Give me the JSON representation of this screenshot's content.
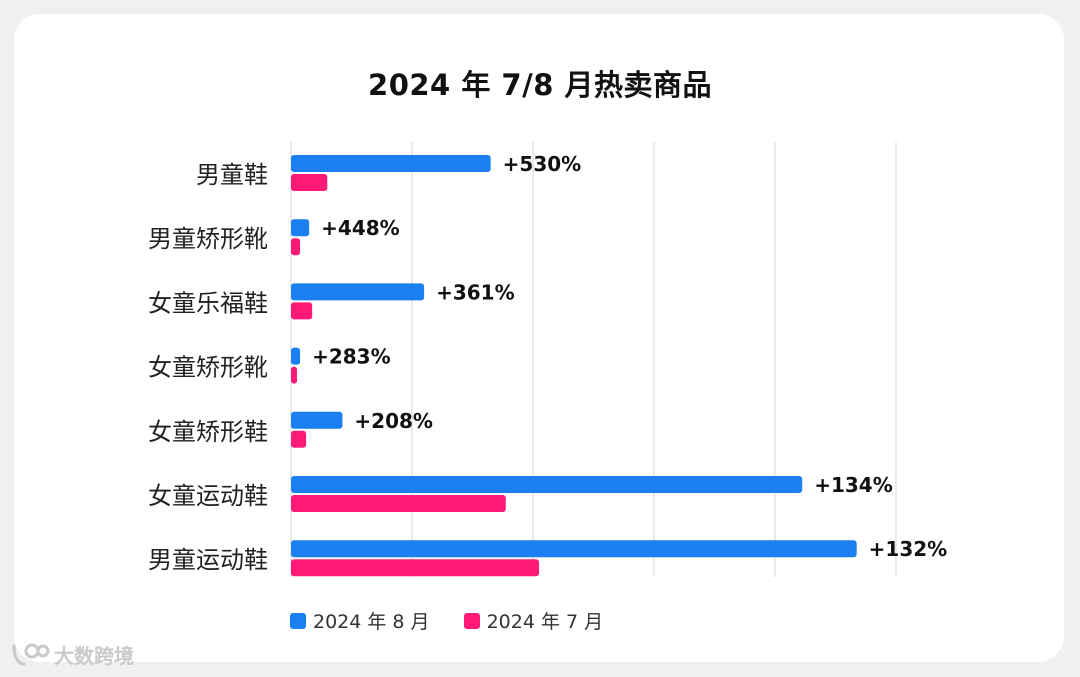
{
  "chart_data": {
    "type": "bar",
    "orientation": "horizontal",
    "title": "2024 年 7/8 月热卖商品",
    "categories": [
      "男童鞋",
      "男童矫形靴",
      "女童乐福鞋",
      "女童矫形靴",
      "女童矫形鞋",
      "女童运动鞋",
      "男童运动鞋"
    ],
    "series": [
      {
        "name": "2024 年 8 月",
        "color": "#1a7ff0",
        "values": [
          33,
          3,
          22,
          1.5,
          8.5,
          84.5,
          93.5
        ]
      },
      {
        "name": "2024 年 7 月",
        "color": "#ff1a78",
        "values": [
          6,
          1.5,
          3.5,
          1,
          2.5,
          35.5,
          41
        ]
      }
    ],
    "growth_labels": [
      "+530%",
      "+448%",
      "+361%",
      "+283%",
      "+208%",
      "+134%",
      "+132%"
    ],
    "xlim": [
      0,
      100
    ],
    "grid": true,
    "legend_position": "bottom-left"
  },
  "watermark": {
    "text": "大数跨境",
    "icon": "logo-icon"
  }
}
